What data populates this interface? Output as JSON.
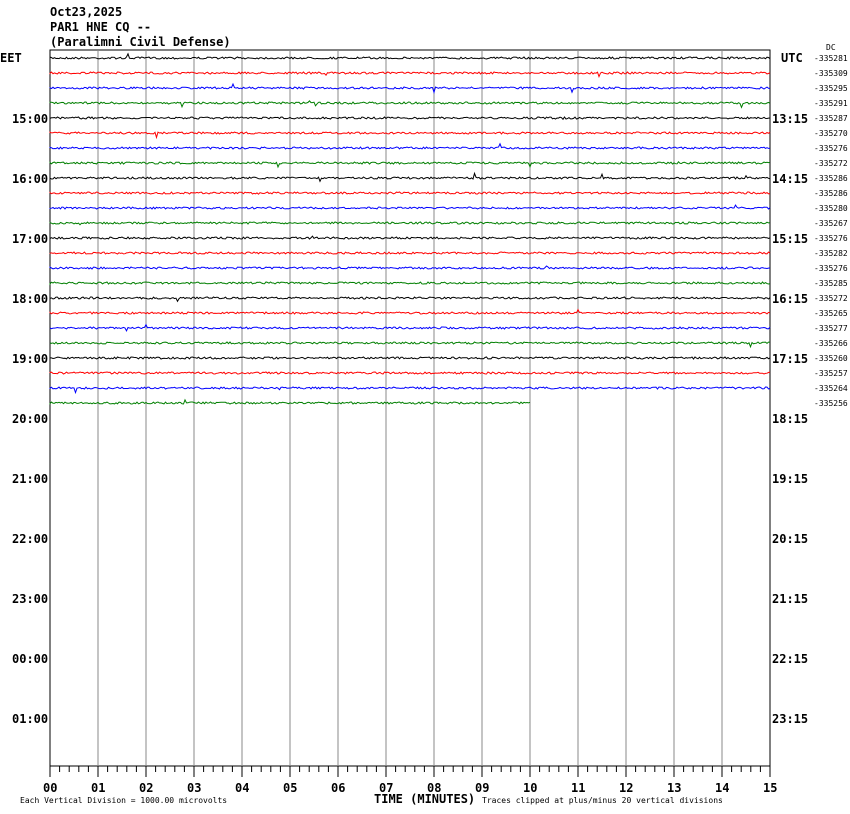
{
  "header": {
    "date": "Oct23,2025",
    "station": "PAR1 HNE CQ --",
    "network": "(Paralimni Civil Defense)",
    "dc_label": "DC"
  },
  "chart_data": {
    "type": "line",
    "subtype": "helicorder",
    "xlabel": "TIME (MINUTES)",
    "xlim": [
      0,
      15
    ],
    "x_ticks": [
      "00",
      "01",
      "02",
      "03",
      "04",
      "05",
      "06",
      "07",
      "08",
      "09",
      "10",
      "11",
      "12",
      "13",
      "14",
      "15"
    ],
    "left_timezone": "EET",
    "right_timezone": "UTC",
    "left_hour_labels": [
      "15:00",
      "16:00",
      "17:00",
      "18:00",
      "19:00",
      "20:00",
      "21:00",
      "22:00",
      "23:00",
      "00:00",
      "01:00"
    ],
    "right_hour_labels": [
      "13:15",
      "14:15",
      "15:15",
      "16:15",
      "17:15",
      "18:15",
      "19:15",
      "20:15",
      "21:15",
      "22:15",
      "23:15"
    ],
    "trace_colors": [
      "#000000",
      "#ff0000",
      "#0000ff",
      "#007f00"
    ],
    "dc_offsets": [
      "-335281",
      "-335309",
      "-335295",
      "-335291",
      "-335287",
      "-335270",
      "-335276",
      "-335272",
      "-335286",
      "-335286",
      "-335280",
      "-335267",
      "-335276",
      "-335282",
      "-335276",
      "-335285",
      "-335272",
      "-335265",
      "-335277",
      "-335266",
      "-335260",
      "-335257",
      "-335264",
      "-335256"
    ],
    "last_trace_end_minute": 10,
    "footer_scale": "Each Vertical Division = 1000.00 microvolts",
    "footer_clip": "Traces clipped at plus/minus 20 vertical divisions",
    "grid": true
  }
}
